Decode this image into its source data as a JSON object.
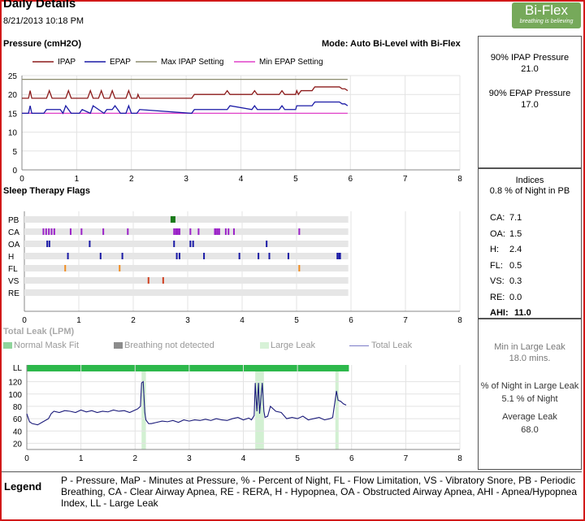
{
  "header": {
    "title": "Daily Details",
    "date": "8/21/2013 10:18 PM"
  },
  "logo": {
    "name": "Bi-Flex",
    "tagline": "breathing is believing"
  },
  "pressure": {
    "title": "Pressure (cmH2O)",
    "mode": "Mode: Auto Bi-Level with Bi-Flex",
    "legend": [
      "IPAP",
      "EPAP",
      "Max IPAP Setting",
      "Min EPAP Setting"
    ],
    "stat1_label": "90% IPAP Pressure",
    "stat1_value": "21.0",
    "stat2_label": "90% EPAP Pressure",
    "stat2_value": "17.0"
  },
  "flags": {
    "title": "Sleep Therapy Flags",
    "indices_title": "Indices",
    "indices_sub": "0.8 % of Night in PB",
    "indices": [
      {
        "k": "CA:",
        "v": "7.1"
      },
      {
        "k": "OA:",
        "v": "1.5"
      },
      {
        "k": "H:",
        "v": "2.4"
      },
      {
        "k": "FL:",
        "v": "0.5"
      },
      {
        "k": "VS:",
        "v": "0.3"
      },
      {
        "k": "RE:",
        "v": "0.0"
      },
      {
        "k": "AHI:",
        "v": "11.0"
      }
    ]
  },
  "leak": {
    "title": "Total Leak (LPM)",
    "legend": [
      "Normal Mask Fit",
      "Breathing not detected",
      "Large Leak",
      "Total Leak"
    ],
    "stat1_label": "Min in Large Leak",
    "stat1_value": "18.0 mins.",
    "stat2_label": "% of Night in Large Leak",
    "stat2_value": "5.1 % of Night",
    "stat3_label": "Average Leak",
    "stat3_value": "68.0"
  },
  "legend": {
    "label": "Legend",
    "text": "P - Pressure, MaP - Minutes at Pressure, % - Percent of Night, FL - Flow Limitation, VS - Vibratory Snore, PB - Periodic Breathing, CA - Clear Airway Apnea, RE - RERA, H - Hypopnea, OA - Obstructed Airway Apnea, AHI - Apnea/Hypopnea Index, LL - Large Leak"
  },
  "chart_data": [
    {
      "type": "line",
      "title": "Pressure (cmH2O)",
      "xlim": [
        0,
        8
      ],
      "ylim": [
        0,
        25
      ],
      "x_ticks": [
        "0",
        "1",
        "2",
        "3",
        "4",
        "5",
        "6",
        "7",
        "8"
      ],
      "y_ticks": [
        "0",
        "5",
        "10",
        "15",
        "20",
        "25"
      ],
      "colors": {
        "IPAP": "#8b1a1a",
        "EPAP": "#1a1aa6",
        "Max IPAP Setting": "#8c8c6e",
        "Min EPAP Setting": "#e040c8"
      },
      "series": [
        {
          "name": "Max IPAP Setting",
          "x": [
            0,
            5.95
          ],
          "y": [
            24,
            24
          ]
        },
        {
          "name": "Min EPAP Setting",
          "x": [
            0,
            5.95
          ],
          "y": [
            15,
            15
          ]
        },
        {
          "name": "IPAP",
          "x": [
            0,
            0.12,
            0.15,
            0.18,
            0.22,
            0.45,
            0.5,
            0.55,
            0.8,
            0.85,
            0.9,
            1.2,
            1.25,
            1.3,
            1.4,
            1.45,
            1.5,
            1.6,
            1.65,
            1.7,
            1.8,
            1.9,
            1.95,
            2.0,
            2.1,
            2.12,
            2.15,
            3.1,
            3.15,
            3.3,
            3.7,
            3.75,
            3.8,
            4.2,
            4.25,
            4.3,
            4.7,
            4.75,
            4.8,
            5.0,
            5.02,
            5.05,
            5.1,
            5.3,
            5.35,
            5.55,
            5.6,
            5.8,
            5.85,
            5.9,
            5.95
          ],
          "y": [
            19,
            19,
            21,
            19,
            19,
            19,
            21,
            19,
            19,
            21,
            19,
            19,
            21,
            19,
            19,
            21,
            19,
            19,
            21,
            19,
            19,
            19,
            21,
            19,
            19,
            20,
            19,
            19,
            20,
            20,
            20,
            21,
            20,
            20,
            21,
            20,
            20,
            21,
            20,
            20,
            21,
            20,
            21,
            21,
            22,
            22,
            22,
            22,
            21.5,
            21.5,
            21
          ]
        },
        {
          "name": "EPAP",
          "x": [
            0,
            0.12,
            0.15,
            0.18,
            0.4,
            0.45,
            0.7,
            0.75,
            0.8,
            0.9,
            1.05,
            1.1,
            1.25,
            1.3,
            1.5,
            1.55,
            1.65,
            1.7,
            1.8,
            1.9,
            1.95,
            2.0,
            2.1,
            2.15,
            3.1,
            3.15,
            3.3,
            3.75,
            3.8,
            4.2,
            4.25,
            4.3,
            4.7,
            4.75,
            4.8,
            5.0,
            5.02,
            5.1,
            5.3,
            5.35,
            5.55,
            5.6,
            5.8,
            5.85,
            5.9,
            5.95
          ],
          "y": [
            15,
            15,
            17,
            15,
            15,
            16,
            16,
            15,
            17,
            15,
            15,
            16,
            15,
            17,
            15,
            16,
            16,
            17,
            15,
            15,
            17,
            15,
            15,
            16,
            15,
            16,
            16,
            16,
            17,
            16,
            17,
            16,
            16,
            17,
            16,
            16,
            17,
            17,
            17,
            18,
            18,
            18,
            18,
            17.5,
            17.5,
            17
          ]
        }
      ]
    },
    {
      "type": "scatter",
      "title": "Sleep Therapy Flags",
      "xlim": [
        0,
        8
      ],
      "categories": [
        "PB",
        "CA",
        "OA",
        "H",
        "FL",
        "VS",
        "RE"
      ],
      "x_ticks": [
        "0",
        "1",
        "2",
        "3",
        "4",
        "5",
        "6",
        "7",
        "8"
      ],
      "colors": {
        "PB": "#1a7a1a",
        "CA": "#9b22c8",
        "OA": "#1a1aa6",
        "H": "#1a1aa6",
        "FL": "#f08c20",
        "VS": "#d04020",
        "RE": "#555555"
      },
      "events": {
        "PB": [
          2.7,
          2.72,
          2.74,
          2.76
        ],
        "CA": [
          0.35,
          0.4,
          0.45,
          0.5,
          0.55,
          0.85,
          1.05,
          1.45,
          1.9,
          2.75,
          2.78,
          2.8,
          2.82,
          2.85,
          3.05,
          3.2,
          3.5,
          3.52,
          3.55,
          3.58,
          3.7,
          3.75,
          3.85,
          5.05
        ],
        "OA": [
          0.42,
          0.46,
          1.2,
          2.75,
          3.05,
          3.1,
          4.45
        ],
        "H": [
          0.8,
          1.4,
          1.8,
          2.8,
          2.85,
          3.3,
          3.95,
          4.3,
          4.5,
          4.85,
          5.75,
          5.78,
          5.8
        ],
        "FL": [
          0.75,
          1.75,
          5.05
        ],
        "VS": [
          2.28,
          2.55
        ],
        "RE": []
      }
    },
    {
      "type": "line",
      "title": "Total Leak (LPM)",
      "xlim": [
        0,
        8
      ],
      "ylim": [
        10,
        130
      ],
      "x_ticks": [
        "0",
        "1",
        "2",
        "3",
        "4",
        "5",
        "6",
        "7",
        "8"
      ],
      "y_ticks": [
        "20",
        "40",
        "60",
        "80",
        "100",
        "120"
      ],
      "y_top_label": "LL",
      "colors": {
        "Total Leak": "#1a1a7a",
        "Normal Mask Fit": "#2db84b",
        "Breathing not detected": "#8c8c8c",
        "Large Leak": "#d2f0d2"
      },
      "large_leak_bands": [
        [
          2.12,
          2.2
        ],
        [
          4.22,
          4.38
        ],
        [
          5.7,
          5.76
        ]
      ],
      "series": [
        {
          "name": "Total Leak",
          "x": [
            0,
            0.05,
            0.1,
            0.2,
            0.3,
            0.4,
            0.45,
            0.5,
            0.6,
            0.7,
            0.8,
            0.9,
            1.0,
            1.1,
            1.2,
            1.3,
            1.4,
            1.5,
            1.6,
            1.7,
            1.8,
            1.9,
            2.0,
            2.05,
            2.1,
            2.12,
            2.15,
            2.18,
            2.2,
            2.25,
            2.3,
            2.4,
            2.5,
            2.6,
            2.7,
            2.8,
            2.9,
            3.0,
            3.1,
            3.2,
            3.3,
            3.4,
            3.5,
            3.6,
            3.7,
            3.8,
            3.9,
            4.0,
            4.1,
            4.15,
            4.2,
            4.22,
            4.25,
            4.28,
            4.3,
            4.35,
            4.38,
            4.4,
            4.45,
            4.5,
            4.6,
            4.7,
            4.8,
            4.9,
            5.0,
            5.1,
            5.2,
            5.3,
            5.4,
            5.5,
            5.6,
            5.65,
            5.7,
            5.72,
            5.75,
            5.8,
            5.85,
            5.9
          ],
          "y": [
            68,
            55,
            52,
            50,
            55,
            60,
            68,
            72,
            70,
            73,
            72,
            70,
            74,
            71,
            73,
            70,
            72,
            71,
            74,
            72,
            73,
            70,
            74,
            76,
            80,
            118,
            120,
            70,
            58,
            52,
            52,
            54,
            56,
            55,
            57,
            54,
            58,
            56,
            58,
            57,
            59,
            57,
            60,
            58,
            57,
            60,
            62,
            58,
            61,
            58,
            65,
            118,
            72,
            118,
            68,
            118,
            72,
            62,
            64,
            80,
            72,
            70,
            60,
            62,
            60,
            64,
            58,
            60,
            62,
            58,
            60,
            62,
            92,
            105,
            90,
            88,
            84,
            82
          ]
        }
      ]
    }
  ]
}
